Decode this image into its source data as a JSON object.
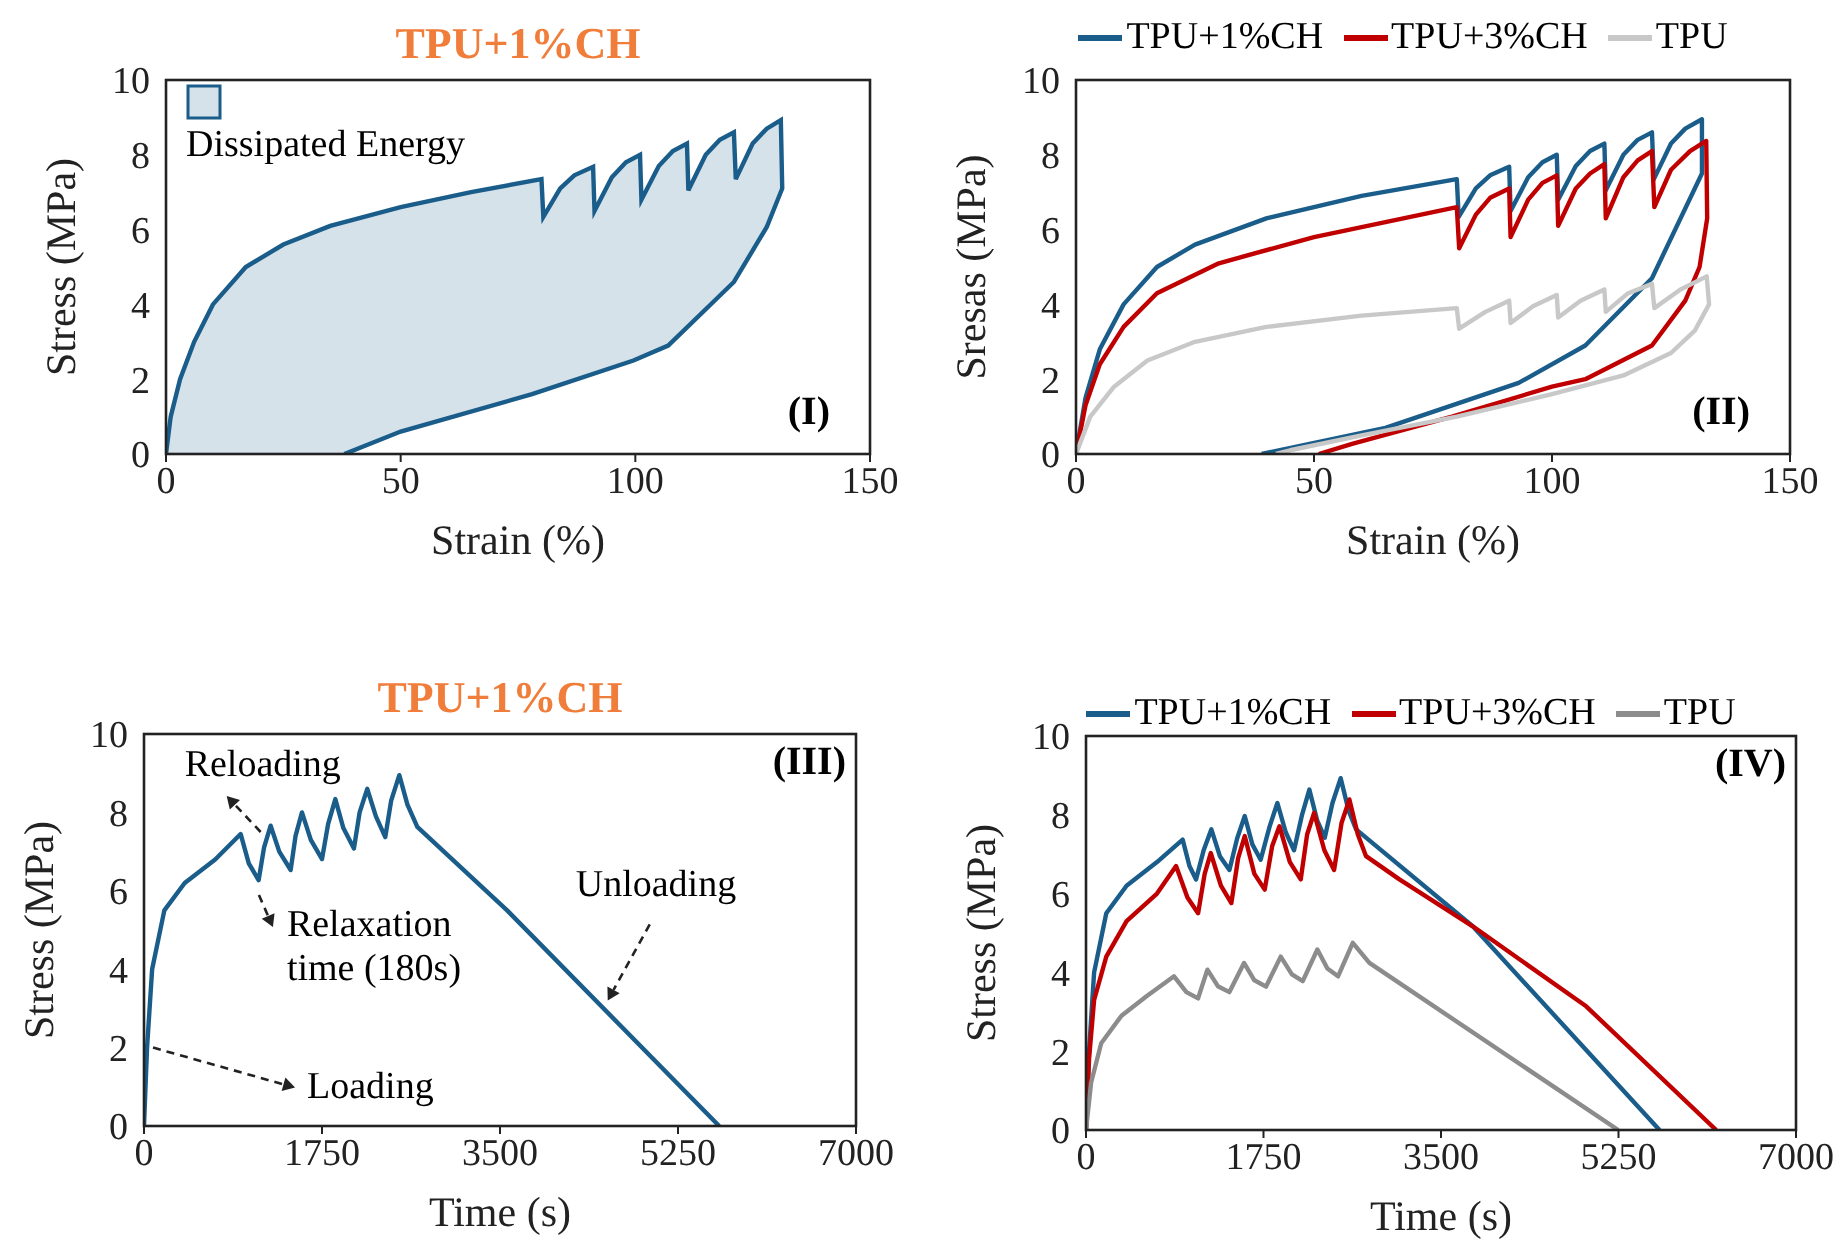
{
  "chart_data": [
    {
      "type": "area",
      "title": "TPU+1%CH",
      "xlabel": "Strain (%)",
      "ylabel": "Stress (MPa)",
      "xlim": [
        0,
        150
      ],
      "xticks": [
        0,
        50,
        100,
        150
      ],
      "ylim": [
        0,
        10
      ],
      "yticks": [
        0,
        2,
        4,
        6,
        8,
        10
      ],
      "legend": "top left",
      "annotations": [
        "(I)"
      ],
      "series": [
        {
          "name": "Dissipated Energy",
          "color": "#1a5d8a",
          "x": [
            0,
            1,
            3,
            6,
            10,
            17,
            25,
            35,
            50,
            65,
            80,
            80.4,
            84,
            87,
            91,
            91.3,
            95,
            98,
            101,
            101.3,
            105,
            108,
            111,
            111.3,
            115,
            118,
            121,
            121.4,
            125,
            128,
            131,
            131.3,
            128,
            121,
            107,
            99.6,
            78,
            50,
            38
          ],
          "values": [
            0,
            1,
            2,
            3,
            4,
            5,
            5.6,
            6.1,
            6.6,
            7,
            7.35,
            6.34,
            7.1,
            7.45,
            7.68,
            6.5,
            7.4,
            7.8,
            8.0,
            6.8,
            7.7,
            8.1,
            8.3,
            7.05,
            8.0,
            8.4,
            8.6,
            7.35,
            8.3,
            8.7,
            8.93,
            7.1,
            6.07,
            4.6,
            2.9,
            2.5,
            1.6,
            0.6,
            0
          ]
        }
      ]
    },
    {
      "type": "line",
      "xlabel": "Strain (%)",
      "ylabel": "Sresas (MPa)",
      "xlim": [
        0,
        150
      ],
      "xticks": [
        0,
        50,
        100,
        150
      ],
      "ylim": [
        0,
        10
      ],
      "yticks": [
        0,
        2,
        4,
        6,
        8,
        10
      ],
      "legend": "top",
      "annotations": [
        "(II)"
      ],
      "series": [
        {
          "name": "TPU+1%CH",
          "color": "#1a5d8a",
          "x": [
            0,
            2,
            5,
            10,
            17,
            25,
            40,
            60,
            80,
            80.4,
            84,
            87,
            91,
            91.3,
            95,
            98,
            101,
            101.3,
            105,
            108,
            111,
            111.3,
            115,
            118,
            121,
            121.4,
            125,
            128,
            131.5,
            131.5,
            121,
            107,
            93,
            65,
            39
          ],
          "values": [
            0,
            1.5,
            2.8,
            4,
            5,
            5.6,
            6.3,
            6.9,
            7.35,
            6.34,
            7.1,
            7.45,
            7.68,
            6.5,
            7.4,
            7.8,
            8.0,
            6.8,
            7.7,
            8.1,
            8.3,
            7.05,
            8.0,
            8.4,
            8.6,
            7.35,
            8.3,
            8.7,
            8.95,
            7.5,
            4.7,
            2.9,
            1.9,
            0.7,
            0
          ]
        },
        {
          "name": "TPU+3%CH",
          "color": "#c00000",
          "x": [
            0,
            2,
            5,
            10,
            17,
            30,
            50,
            80,
            80.5,
            84,
            87,
            91,
            91.3,
            95,
            98,
            101,
            101.3,
            105,
            108,
            111,
            111.3,
            115,
            118,
            121,
            121.5,
            125,
            129,
            132.4,
            132.6,
            131,
            128,
            121,
            107,
            100,
            79,
            58,
            51
          ],
          "values": [
            0,
            1.3,
            2.4,
            3.4,
            4.3,
            5.1,
            5.8,
            6.6,
            5.5,
            6.4,
            6.85,
            7.1,
            5.8,
            6.8,
            7.25,
            7.45,
            6.1,
            7.1,
            7.5,
            7.75,
            6.3,
            7.4,
            7.85,
            8.1,
            6.6,
            7.6,
            8.1,
            8.37,
            6.3,
            5.0,
            4.1,
            2.9,
            2.0,
            1.8,
            1.0,
            0.27,
            0
          ]
        },
        {
          "name": "TPU",
          "color": "#c8c8c8",
          "x": [
            0,
            3,
            8,
            15,
            25,
            40,
            60,
            80,
            80.5,
            86,
            91,
            91.3,
            96,
            101,
            101.3,
            106,
            111,
            111.3,
            116,
            121,
            121.5,
            127,
            132.5,
            133,
            130,
            125,
            115,
            100,
            80,
            60,
            45,
            42
          ],
          "values": [
            0,
            1,
            1.8,
            2.5,
            3,
            3.4,
            3.7,
            3.9,
            3.35,
            3.8,
            4.1,
            3.5,
            3.95,
            4.25,
            3.65,
            4.1,
            4.4,
            3.8,
            4.3,
            4.55,
            3.9,
            4.4,
            4.75,
            4.0,
            3.3,
            2.7,
            2.1,
            1.6,
            1.0,
            0.5,
            0.1,
            0
          ]
        }
      ]
    },
    {
      "type": "line",
      "title": "TPU+1%CH",
      "xlabel": "Time (s)",
      "ylabel": "Stress (MPa)",
      "xlim": [
        0,
        7000
      ],
      "xticks": [
        0,
        1750,
        3500,
        5250,
        7000
      ],
      "ylim": [
        0,
        10
      ],
      "yticks": [
        0,
        2,
        4,
        6,
        8,
        10
      ],
      "annotations": [
        {
          "text": "Reloading",
          "x": 1147,
          "y": 7.5
        },
        {
          "text": "Relaxation time (180s)",
          "x": 1130,
          "y": 6.3
        },
        {
          "text": "Loading",
          "x": 30,
          "y": 2
        },
        {
          "text": "Unloading",
          "x": 4520,
          "y": 3
        },
        "(III)"
      ],
      "series": [
        {
          "color": "#1a5d8a",
          "x": [
            0,
            30,
            80,
            200,
            400,
            700,
            950,
            1030,
            1127,
            1180,
            1245,
            1330,
            1442,
            1490,
            1553,
            1640,
            1750,
            1810,
            1881,
            1960,
            2064,
            2120,
            2195,
            2280,
            2372,
            2430,
            2510,
            2590,
            2687,
            3570,
            5655
          ],
          "values": [
            0,
            2,
            4,
            5.5,
            6.2,
            6.8,
            7.45,
            6.7,
            6.27,
            7.1,
            7.66,
            7.0,
            6.53,
            7.4,
            8.0,
            7.3,
            6.81,
            7.7,
            8.34,
            7.6,
            7.08,
            8.0,
            8.6,
            7.9,
            7.37,
            8.3,
            8.95,
            8.2,
            7.63,
            5.5,
            0
          ]
        }
      ]
    },
    {
      "type": "line",
      "xlabel": "Time (s)",
      "ylabel": "Stress (MPa)",
      "xlim": [
        0,
        7000
      ],
      "xticks": [
        0,
        1750,
        3500,
        5250,
        7000
      ],
      "ylim": [
        0,
        10
      ],
      "yticks": [
        0,
        2,
        4,
        6,
        8,
        10
      ],
      "legend": "top",
      "annotations": [
        "(IV)"
      ],
      "series": [
        {
          "name": "TPU+1%CH",
          "color": "#1a5d8a",
          "x": [
            0,
            30,
            80,
            200,
            400,
            700,
            953,
            1020,
            1085,
            1160,
            1236,
            1320,
            1414,
            1490,
            1565,
            1640,
            1722,
            1810,
            1887,
            1970,
            2051,
            2130,
            2202,
            2280,
            2354,
            2430,
            2511,
            2590,
            2663,
            3813,
            5654
          ],
          "values": [
            0,
            2,
            4,
            5.5,
            6.2,
            6.8,
            7.37,
            6.7,
            6.36,
            7.1,
            7.63,
            6.95,
            6.6,
            7.4,
            7.97,
            7.25,
            6.86,
            7.7,
            8.3,
            7.55,
            7.1,
            8.0,
            8.64,
            7.85,
            7.42,
            8.3,
            8.93,
            8.1,
            7.63,
            5.17,
            0
          ]
        },
        {
          "name": "TPU+3%CH",
          "color": "#c00000",
          "x": [
            0,
            30,
            80,
            200,
            400,
            700,
            888,
            1000,
            1105,
            1170,
            1230,
            1330,
            1433,
            1500,
            1565,
            1660,
            1762,
            1835,
            1907,
            2010,
            2117,
            2180,
            2249,
            2350,
            2446,
            2520,
            2597,
            2680,
            2761,
            3090,
            3813,
            4931,
            6213
          ],
          "values": [
            0,
            1.8,
            3.3,
            4.4,
            5.3,
            6.0,
            6.7,
            5.9,
            5.5,
            6.5,
            7.03,
            6.2,
            5.76,
            6.9,
            7.46,
            6.5,
            6.1,
            7.2,
            7.71,
            6.8,
            6.36,
            7.5,
            8.05,
            7.1,
            6.6,
            7.8,
            8.39,
            7.5,
            6.95,
            6.36,
            5.17,
            3.14,
            0
          ]
        },
        {
          "name": "TPU",
          "color": "#8c8c8c",
          "x": [
            0,
            50,
            150,
            350,
            600,
            868,
            990,
            1105,
            1197,
            1300,
            1414,
            1558,
            1660,
            1775,
            1920,
            2030,
            2137,
            2281,
            2380,
            2485,
            2630,
            2794,
            5247
          ],
          "values": [
            0,
            1.2,
            2.2,
            2.9,
            3.4,
            3.9,
            3.5,
            3.34,
            4.07,
            3.65,
            3.5,
            4.24,
            3.8,
            3.64,
            4.4,
            3.95,
            3.78,
            4.58,
            4.1,
            3.9,
            4.75,
            4.24,
            0
          ]
        }
      ]
    }
  ]
}
